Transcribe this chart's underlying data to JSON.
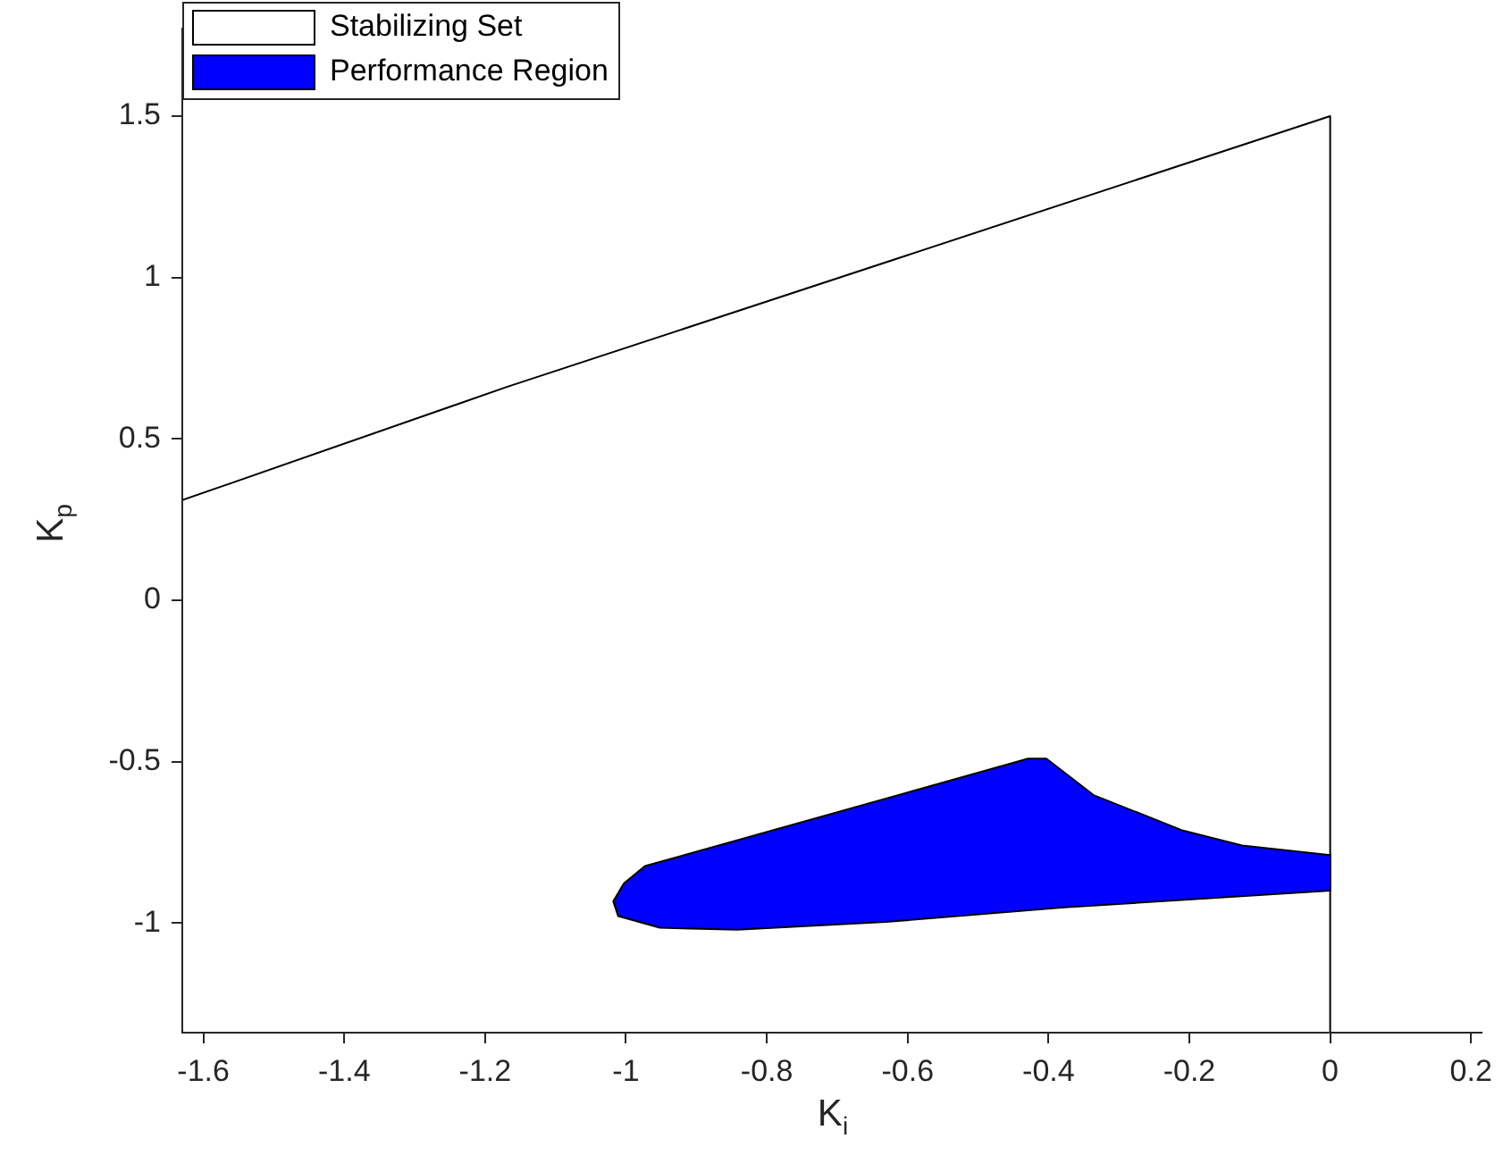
{
  "chart_data": {
    "type": "area",
    "xlabel": "K$_{i}$",
    "ylabel": "K$_{p}$",
    "xlim": [
      -1.63,
      0.215
    ],
    "ylim": [
      -1.34,
      1.77
    ],
    "xticks": [
      -1.6,
      -1.4,
      -1.2,
      -1,
      -0.8,
      -0.6,
      -0.4,
      -0.2,
      0,
      0.2
    ],
    "yticks": [
      -1,
      -0.5,
      0,
      0.5,
      1,
      1.5
    ],
    "grid": false,
    "legend": "top left",
    "marker": "none",
    "series": [
      {
        "name": "Stabilizing Set",
        "color": "#ffffff",
        "x": [
          -1.63,
          -1.17,
          0,
          0
        ],
        "values": [
          0.31,
          0.66,
          1.5,
          -1.34
        ]
      },
      {
        "name": "Performance Region",
        "color": "#0000ff",
        "x": [
          -0.973,
          -0.429,
          -0.403,
          -0.336,
          -0.209,
          -0.125,
          0,
          0,
          -0.378,
          -0.631,
          -0.842,
          -0.952,
          -1.011,
          -1.018,
          -1.003,
          -0.973
        ],
        "values": [
          -0.824,
          -0.491,
          -0.491,
          -0.604,
          -0.714,
          -0.76,
          -0.79,
          -0.9,
          -0.952,
          -0.997,
          -1.021,
          -1.015,
          -0.979,
          -0.933,
          -0.878,
          -0.824
        ]
      }
    ]
  }
}
